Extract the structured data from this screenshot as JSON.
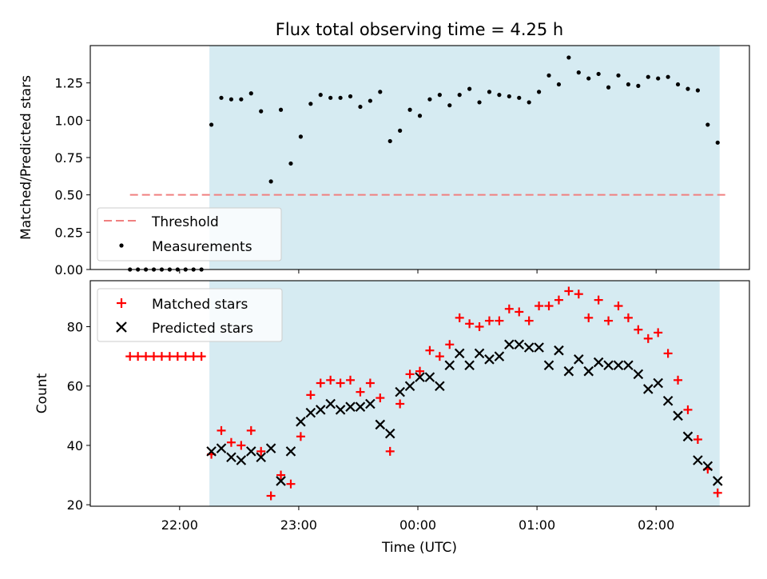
{
  "chart_data": [
    {
      "type": "scatter",
      "title": "Flux total observing time = 4.25 h",
      "xlabel": "",
      "ylabel": "Matched/Predicted stars",
      "ylim": [
        0,
        1.5
      ],
      "yticks": [
        "0.00",
        "0.25",
        "0.50",
        "0.75",
        "1.00",
        "1.25"
      ],
      "threshold": {
        "name": "Threshold",
        "value": 0.5,
        "xmin": "21:35",
        "xmax": "02:35",
        "color": "#f08080"
      },
      "observing_window": {
        "start": "22:15",
        "end": "02:32",
        "color": "#add8e6"
      },
      "series": [
        {
          "name": "Measurements",
          "color": "#000000",
          "points": [
            [
              "21:35",
              0.0
            ],
            [
              "21:39",
              0.0
            ],
            [
              "21:43",
              0.0
            ],
            [
              "21:47",
              0.0
            ],
            [
              "21:51",
              0.0
            ],
            [
              "21:55",
              0.0
            ],
            [
              "21:59",
              0.0
            ],
            [
              "22:03",
              0.0
            ],
            [
              "22:07",
              0.0
            ],
            [
              "22:11",
              0.0
            ],
            [
              "22:16",
              0.97
            ],
            [
              "22:21",
              1.15
            ],
            [
              "22:26",
              1.14
            ],
            [
              "22:31",
              1.14
            ],
            [
              "22:36",
              1.18
            ],
            [
              "22:41",
              1.06
            ],
            [
              "22:46",
              0.59
            ],
            [
              "22:51",
              1.07
            ],
            [
              "22:56",
              0.71
            ],
            [
              "23:01",
              0.89
            ],
            [
              "23:06",
              1.11
            ],
            [
              "23:11",
              1.17
            ],
            [
              "23:16",
              1.15
            ],
            [
              "23:21",
              1.15
            ],
            [
              "23:26",
              1.16
            ],
            [
              "23:31",
              1.09
            ],
            [
              "23:36",
              1.13
            ],
            [
              "23:41",
              1.19
            ],
            [
              "23:46",
              0.86
            ],
            [
              "23:51",
              0.93
            ],
            [
              "23:56",
              1.07
            ],
            [
              "00:01",
              1.03
            ],
            [
              "00:06",
              1.14
            ],
            [
              "00:11",
              1.17
            ],
            [
              "00:16",
              1.1
            ],
            [
              "00:21",
              1.17
            ],
            [
              "00:26",
              1.21
            ],
            [
              "00:31",
              1.12
            ],
            [
              "00:36",
              1.19
            ],
            [
              "00:41",
              1.17
            ],
            [
              "00:46",
              1.16
            ],
            [
              "00:51",
              1.15
            ],
            [
              "00:56",
              1.12
            ],
            [
              "01:01",
              1.19
            ],
            [
              "01:06",
              1.3
            ],
            [
              "01:11",
              1.24
            ],
            [
              "01:16",
              1.42
            ],
            [
              "01:21",
              1.32
            ],
            [
              "01:26",
              1.28
            ],
            [
              "01:31",
              1.31
            ],
            [
              "01:36",
              1.22
            ],
            [
              "01:41",
              1.3
            ],
            [
              "01:46",
              1.24
            ],
            [
              "01:51",
              1.23
            ],
            [
              "01:56",
              1.29
            ],
            [
              "02:01",
              1.28
            ],
            [
              "02:06",
              1.29
            ],
            [
              "02:11",
              1.24
            ],
            [
              "02:16",
              1.21
            ],
            [
              "02:21",
              1.2
            ],
            [
              "02:26",
              0.97
            ],
            [
              "02:31",
              0.85
            ]
          ]
        }
      ]
    },
    {
      "type": "scatter",
      "title": "",
      "xlabel": "Time (UTC)",
      "ylabel": "Count",
      "ylim": [
        19.5,
        95.5
      ],
      "yticks": [
        "20",
        "40",
        "60",
        "80"
      ],
      "xticks": [
        "22:00",
        "23:00",
        "00:00",
        "01:00",
        "02:00"
      ],
      "observing_window": {
        "start": "22:15",
        "end": "02:32",
        "color": "#add8e6"
      },
      "series": [
        {
          "name": "Matched stars",
          "marker": "plus",
          "color": "#ff0000",
          "points": [
            [
              "21:35",
              70
            ],
            [
              "21:39",
              70
            ],
            [
              "21:43",
              70
            ],
            [
              "21:47",
              70
            ],
            [
              "21:51",
              70
            ],
            [
              "21:55",
              70
            ],
            [
              "21:59",
              70
            ],
            [
              "22:03",
              70
            ],
            [
              "22:07",
              70
            ],
            [
              "22:11",
              70
            ],
            [
              "22:16",
              37
            ],
            [
              "22:21",
              45
            ],
            [
              "22:26",
              41
            ],
            [
              "22:31",
              40
            ],
            [
              "22:36",
              45
            ],
            [
              "22:41",
              38
            ],
            [
              "22:46",
              23
            ],
            [
              "22:51",
              30
            ],
            [
              "22:56",
              27
            ],
            [
              "23:01",
              43
            ],
            [
              "23:06",
              57
            ],
            [
              "23:11",
              61
            ],
            [
              "23:16",
              62
            ],
            [
              "23:21",
              61
            ],
            [
              "23:26",
              62
            ],
            [
              "23:31",
              58
            ],
            [
              "23:36",
              61
            ],
            [
              "23:41",
              56
            ],
            [
              "23:46",
              38
            ],
            [
              "23:51",
              54
            ],
            [
              "23:56",
              64
            ],
            [
              "00:01",
              65
            ],
            [
              "00:06",
              72
            ],
            [
              "00:11",
              70
            ],
            [
              "00:16",
              74
            ],
            [
              "00:21",
              83
            ],
            [
              "00:26",
              81
            ],
            [
              "00:31",
              80
            ],
            [
              "00:36",
              82
            ],
            [
              "00:41",
              82
            ],
            [
              "00:46",
              86
            ],
            [
              "00:51",
              85
            ],
            [
              "00:56",
              82
            ],
            [
              "01:01",
              87
            ],
            [
              "01:06",
              87
            ],
            [
              "01:11",
              89
            ],
            [
              "01:16",
              92
            ],
            [
              "01:21",
              91
            ],
            [
              "01:26",
              83
            ],
            [
              "01:31",
              89
            ],
            [
              "01:36",
              82
            ],
            [
              "01:41",
              87
            ],
            [
              "01:46",
              83
            ],
            [
              "01:51",
              79
            ],
            [
              "01:56",
              76
            ],
            [
              "02:01",
              78
            ],
            [
              "02:06",
              71
            ],
            [
              "02:11",
              62
            ],
            [
              "02:16",
              52
            ],
            [
              "02:21",
              42
            ],
            [
              "02:26",
              32
            ],
            [
              "02:31",
              24
            ]
          ]
        },
        {
          "name": "Predicted stars",
          "marker": "x",
          "color": "#000000",
          "points": [
            [
              "22:16",
              38
            ],
            [
              "22:21",
              39
            ],
            [
              "22:26",
              36
            ],
            [
              "22:31",
              35
            ],
            [
              "22:36",
              38
            ],
            [
              "22:41",
              36
            ],
            [
              "22:46",
              39
            ],
            [
              "22:51",
              28
            ],
            [
              "22:56",
              38
            ],
            [
              "23:01",
              48
            ],
            [
              "23:06",
              51
            ],
            [
              "23:11",
              52
            ],
            [
              "23:16",
              54
            ],
            [
              "23:21",
              52
            ],
            [
              "23:26",
              53
            ],
            [
              "23:31",
              53
            ],
            [
              "23:36",
              54
            ],
            [
              "23:41",
              47
            ],
            [
              "23:46",
              44
            ],
            [
              "23:51",
              58
            ],
            [
              "23:56",
              60
            ],
            [
              "00:01",
              63
            ],
            [
              "00:06",
              63
            ],
            [
              "00:11",
              60
            ],
            [
              "00:16",
              67
            ],
            [
              "00:21",
              71
            ],
            [
              "00:26",
              67
            ],
            [
              "00:31",
              71
            ],
            [
              "00:36",
              69
            ],
            [
              "00:41",
              70
            ],
            [
              "00:46",
              74
            ],
            [
              "00:51",
              74
            ],
            [
              "00:56",
              73
            ],
            [
              "01:01",
              73
            ],
            [
              "01:06",
              67
            ],
            [
              "01:11",
              72
            ],
            [
              "01:16",
              65
            ],
            [
              "01:21",
              69
            ],
            [
              "01:26",
              65
            ],
            [
              "01:31",
              68
            ],
            [
              "01:36",
              67
            ],
            [
              "01:41",
              67
            ],
            [
              "01:46",
              67
            ],
            [
              "01:51",
              64
            ],
            [
              "01:56",
              59
            ],
            [
              "02:01",
              61
            ],
            [
              "02:06",
              55
            ],
            [
              "02:11",
              50
            ],
            [
              "02:16",
              43
            ],
            [
              "02:21",
              35
            ],
            [
              "02:26",
              33
            ],
            [
              "02:31",
              28
            ]
          ]
        }
      ]
    }
  ]
}
